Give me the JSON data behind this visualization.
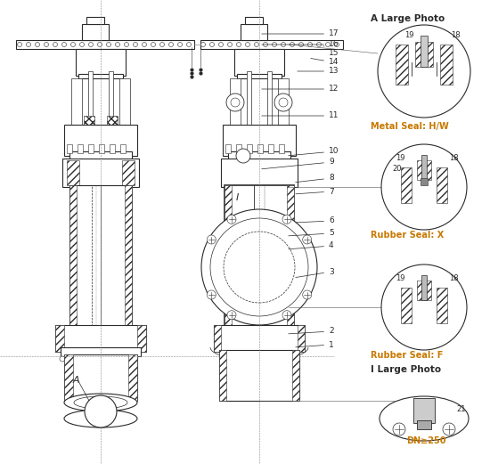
{
  "bg_color": "#ffffff",
  "line_color": "#2a2a2a",
  "hatch_color": "#555555",
  "label_color_black": "#222222",
  "label_color_orange": "#c87800",
  "title_texts": {
    "A_large": "A Large Photo",
    "metal_seal": "Metal Seal: H/W",
    "rubber_x": "Rubber Seal: X",
    "rubber_f": "Rubber Seal: F",
    "I_large": "I Large Photo",
    "DN": "DN≥250"
  },
  "part_numbers": [
    1,
    2,
    3,
    4,
    5,
    6,
    7,
    8,
    9,
    10,
    11,
    12,
    13,
    14,
    15,
    16,
    17,
    18,
    19,
    20,
    21
  ],
  "label_A": "A",
  "label_I": "I"
}
